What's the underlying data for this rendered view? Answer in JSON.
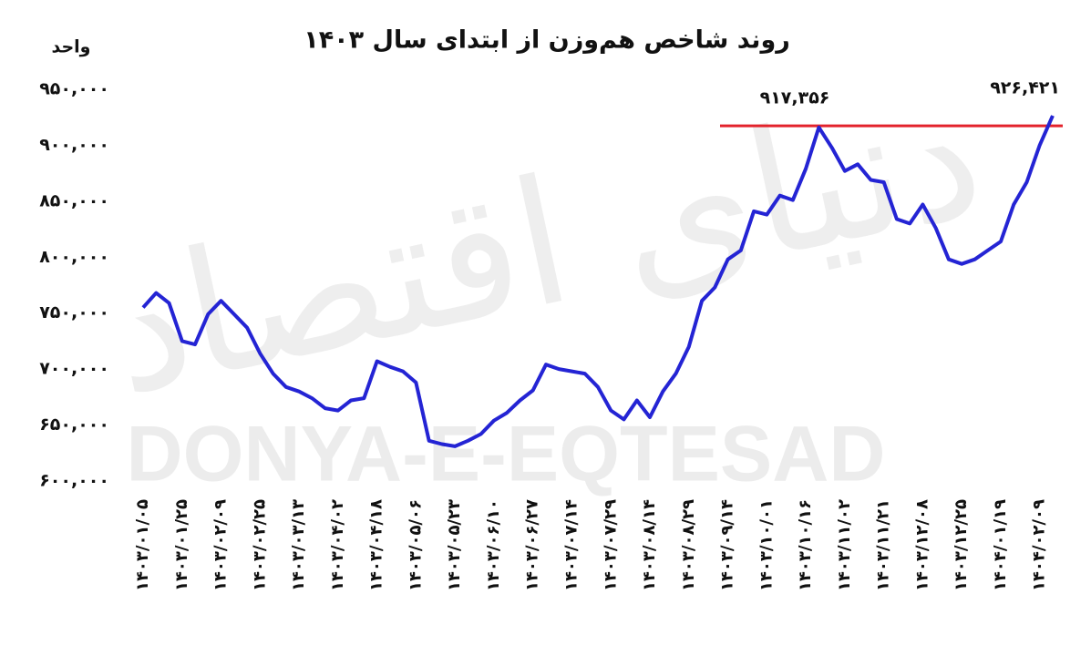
{
  "chart_data": {
    "type": "line",
    "title": "روند شاخص هم‌وزن  از ابتدای سال ۱۴۰۳",
    "y_label": "واحد",
    "watermark": "DONYA-E-EQTESAD",
    "watermark_fa": "دنیای اقتصاد",
    "categories": [
      "۱۴۰۳/۰۱/۰۵",
      null,
      null,
      "۱۴۰۳/۰۱/۲۵",
      null,
      null,
      "۱۴۰۳/۰۲/۰۹",
      null,
      null,
      "۱۴۰۳/۰۲/۲۵",
      null,
      null,
      "۱۴۰۳/۰۳/۱۳",
      null,
      null,
      "۱۴۰۳/۰۴/۰۲",
      null,
      null,
      "۱۴۰۳/۰۴/۱۸",
      null,
      null,
      "۱۴۰۳/۰۵/۰۶",
      null,
      null,
      "۱۴۰۳/۰۵/۲۳",
      null,
      null,
      "۱۴۰۳/۰۶/۱۰",
      null,
      null,
      "۱۴۰۳/۰۶/۲۷",
      null,
      null,
      "۱۴۰۳/۰۷/۱۴",
      null,
      null,
      "۱۴۰۳/۰۷/۲۹",
      null,
      null,
      "۱۴۰۳/۰۸/۱۴",
      null,
      null,
      "۱۴۰۳/۰۸/۲۹",
      null,
      null,
      "۱۴۰۳/۰۹/۱۴",
      null,
      null,
      "۱۴۰۳/۱۰/۰۱",
      null,
      null,
      "۱۴۰۳/۱۰/۱۶",
      null,
      null,
      "۱۴۰۳/۱۱/۰۲",
      null,
      null,
      "۱۴۰۳/۱۱/۲۱",
      null,
      null,
      "۱۴۰۳/۱۲/۰۸",
      null,
      null,
      "۱۴۰۳/۱۲/۲۵",
      null,
      null,
      "۱۴۰۴/۰۱/۱۹",
      null,
      null,
      "۱۴۰۴/۰۲/۰۹",
      null
    ],
    "series": [
      {
        "color": "#2424d4",
        "values": [
          755000,
          768000,
          759000,
          725000,
          722000,
          749000,
          761000,
          749000,
          737000,
          714000,
          696000,
          684000,
          680000,
          674000,
          665000,
          663000,
          672000,
          674000,
          707000,
          702000,
          698000,
          688000,
          636000,
          633000,
          631000,
          636000,
          642000,
          654000,
          661000,
          672000,
          681000,
          704000,
          700000,
          698000,
          696000,
          684000,
          663000,
          655000,
          672000,
          657000,
          680000,
          696000,
          720000,
          761000,
          773000,
          798000,
          806000,
          841000,
          838000,
          855000,
          851000,
          879000,
          916000,
          898000,
          877000,
          883000,
          869000,
          867000,
          834000,
          830000,
          847000,
          826000,
          798000,
          794000,
          798000,
          806000,
          814000,
          847000,
          867000,
          900000,
          926421
        ],
        "value_labels": [
          null,
          null,
          null,
          null,
          null,
          null,
          null,
          null,
          null,
          null,
          null,
          null,
          null,
          null,
          null,
          null,
          null,
          null,
          null,
          null,
          null,
          null,
          null,
          null,
          null,
          null,
          null,
          null,
          null,
          null,
          null,
          null,
          null,
          null,
          null,
          null,
          null,
          null,
          null,
          null,
          null,
          null,
          null,
          null,
          null,
          null,
          null,
          null,
          null,
          null,
          null,
          null,
          null,
          null,
          null,
          null,
          null,
          null,
          null,
          null,
          null,
          null,
          null,
          null,
          null,
          null,
          null,
          null,
          null,
          null,
          "۹۲۶,۴۲۱"
        ]
      }
    ],
    "reference_line": {
      "value": 917356,
      "label": "۹۱۷,۳۵۶",
      "color": "#e3222b"
    },
    "ylim": [
      600000,
      950000
    ],
    "yticks": [
      {
        "value": 600000,
        "label": "۶۰۰,۰۰۰"
      },
      {
        "value": 650000,
        "label": "۶۵۰,۰۰۰"
      },
      {
        "value": 700000,
        "label": "۷۰۰,۰۰۰"
      },
      {
        "value": 750000,
        "label": "۷۵۰,۰۰۰"
      },
      {
        "value": 800000,
        "label": "۸۰۰,۰۰۰"
      },
      {
        "value": 850000,
        "label": "۸۵۰,۰۰۰"
      },
      {
        "value": 900000,
        "label": "۹۰۰,۰۰۰"
      },
      {
        "value": 950000,
        "label": "۹۵۰,۰۰۰"
      }
    ],
    "grid": false
  }
}
